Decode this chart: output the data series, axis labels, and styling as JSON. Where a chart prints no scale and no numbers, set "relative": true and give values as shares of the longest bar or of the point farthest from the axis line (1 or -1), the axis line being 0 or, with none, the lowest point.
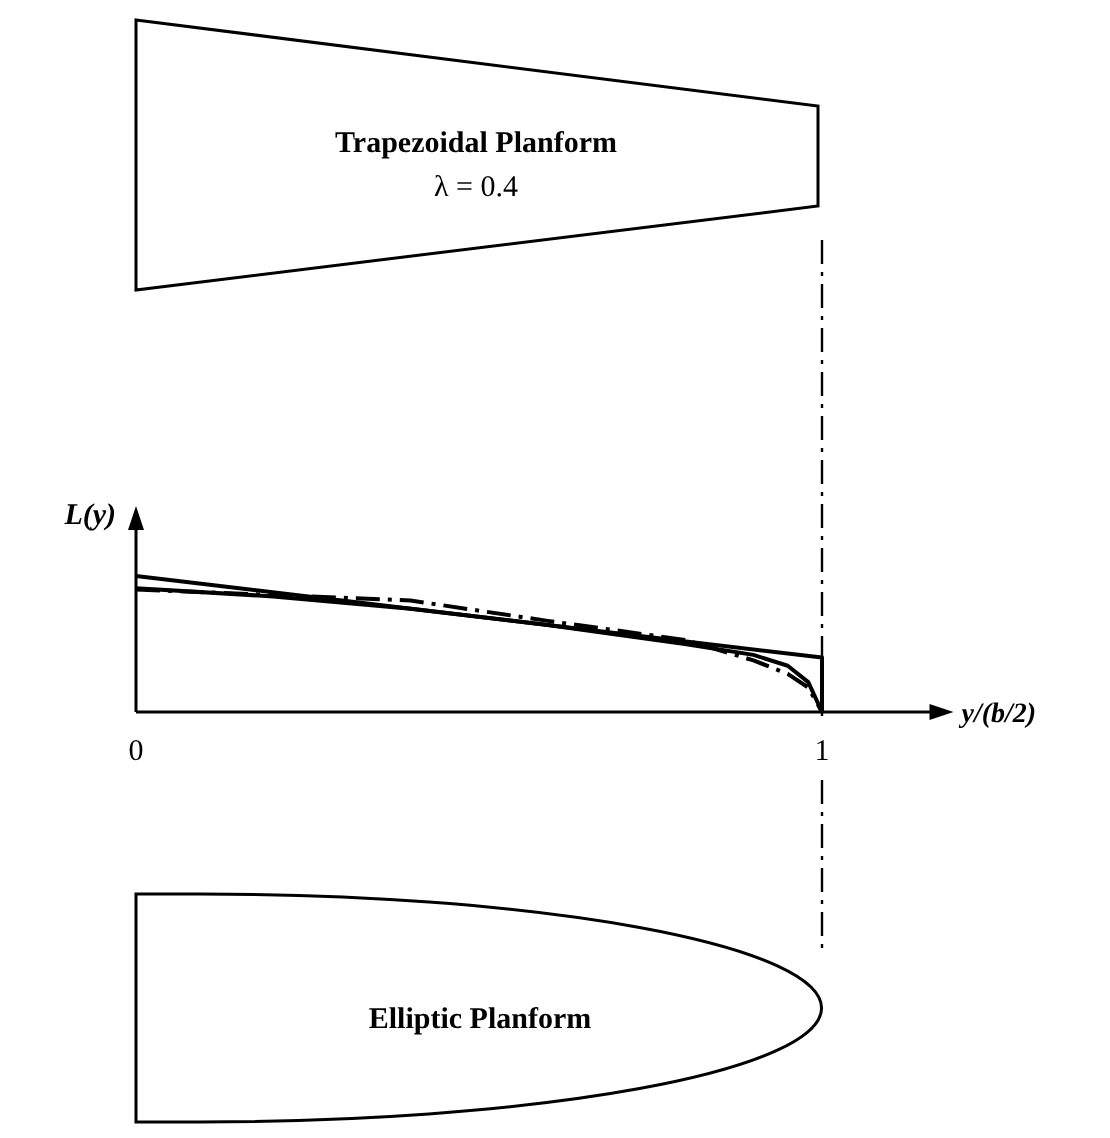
{
  "chart_data": {
    "type": "line",
    "relative": true,
    "xlabel": "y/(b/2)",
    "ylabel": "L(y)",
    "xlim": [
      0,
      1.18
    ],
    "xticks": [
      0,
      1
    ],
    "tick_labels": "x",
    "marker": "none",
    "series": [
      {
        "color": "#000000",
        "x": [
          0,
          1,
          1
        ],
        "values": [
          1,
          0.4,
          0
        ],
        "line_style": "solid"
      },
      {
        "color": "#000000",
        "x": [
          0,
          0.2,
          0.4,
          0.6,
          0.8,
          0.9,
          0.95,
          0.98,
          1
        ],
        "values": [
          0.91,
          0.85,
          0.76,
          0.64,
          0.5,
          0.42,
          0.34,
          0.22,
          0
        ],
        "line_style": "solid"
      },
      {
        "color": "#000000",
        "x": [
          0,
          0.2,
          0.4,
          0.6,
          0.8,
          0.9,
          0.95,
          0.98,
          1
        ],
        "values": [
          0.9,
          0.86,
          0.82,
          0.67,
          0.53,
          0.38,
          0.28,
          0.18,
          0
        ],
        "line_style": "dashed"
      }
    ],
    "ref_lines": [
      {
        "axis": "x",
        "value": 1,
        "line_style": "dashed",
        "color": "#000000"
      }
    ],
    "annotations": [
      "Trapezoidal Planform",
      "λ = 0.4",
      "Elliptic Planform"
    ]
  }
}
